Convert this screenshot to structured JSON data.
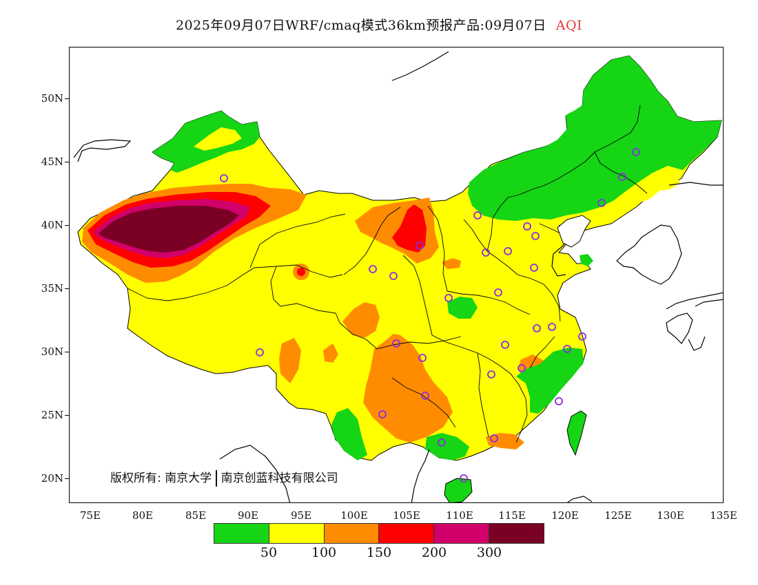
{
  "title": {
    "text": "2025年09月07日WRF/cmaq模式36km预报产品:09月07日",
    "product": "AQI",
    "product_color": "#e23a3a"
  },
  "axes": {
    "y_labels": [
      "50N",
      "45N",
      "40N",
      "35N",
      "30N",
      "25N",
      "20N"
    ],
    "x_labels": [
      "75E",
      "80E",
      "85E",
      "90E",
      "95E",
      "100E",
      "105E",
      "110E",
      "115E",
      "120E",
      "125E",
      "130E",
      "135E"
    ],
    "lon_range": [
      73,
      135
    ],
    "lat_range": [
      18,
      54
    ]
  },
  "copyright": {
    "prefix": "版权所有:",
    "org1": "南京大学",
    "org2": "南京创蓝科技有限公司"
  },
  "legend": {
    "colors": [
      "#15d515",
      "#ffff00",
      "#ff8c00",
      "#ff0000",
      "#d1006a",
      "#7a0024"
    ],
    "labels": [
      "50",
      "100",
      "150",
      "200",
      "300"
    ]
  },
  "map": {
    "colors": {
      "good": "#15d515",
      "moderate": "#ffff00",
      "usg": "#ff8c00",
      "unhealthy": "#ff0000",
      "very_unhealthy": "#d1006a",
      "hazardous": "#7a0024",
      "boundary": "#000000",
      "marker": "#8a2be2"
    }
  }
}
